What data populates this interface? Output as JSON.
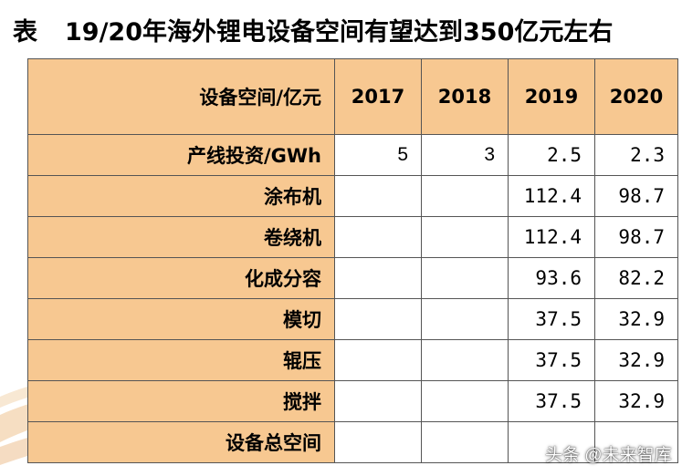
{
  "title": {
    "label": "表",
    "text": "19/20年海外锂电设备空间有望达到350亿元左右"
  },
  "table": {
    "header": {
      "row_label": "设备空间/亿元",
      "years": [
        "2017",
        "2018",
        "2019",
        "2020"
      ]
    },
    "rows": [
      {
        "label": "产线投资/GWh",
        "values": [
          "5",
          "3",
          "2.5",
          "2.3"
        ]
      },
      {
        "label": "涂布机",
        "values": [
          "",
          "",
          "112.4",
          "98.7"
        ]
      },
      {
        "label": "卷绕机",
        "values": [
          "",
          "",
          "112.4",
          "98.7"
        ]
      },
      {
        "label": "化成分容",
        "values": [
          "",
          "",
          "93.6",
          "82.2"
        ]
      },
      {
        "label": "模切",
        "values": [
          "",
          "",
          "37.5",
          "32.9"
        ]
      },
      {
        "label": "辊压",
        "values": [
          "",
          "",
          "37.5",
          "32.9"
        ]
      },
      {
        "label": "搅拌",
        "values": [
          "",
          "",
          "37.5",
          "32.9"
        ]
      },
      {
        "label": "设备总空间",
        "values": [
          "",
          "",
          "",
          ""
        ]
      }
    ]
  },
  "watermark": "头条 @未来智库",
  "colors": {
    "header_fill": "#f7c891",
    "border": "#555555",
    "swoosh": "#e8b27a"
  }
}
